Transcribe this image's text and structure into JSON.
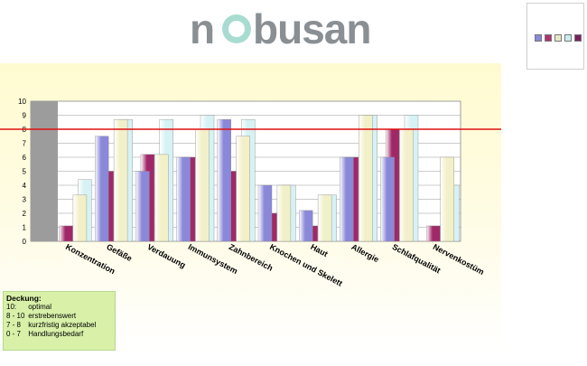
{
  "logo": {
    "text": "nobusan"
  },
  "legend_colors": [
    "#8a88d8",
    "#b03070",
    "#e8e8c8",
    "#c8eef0",
    "#7a2060"
  ],
  "deckung": {
    "title": "Deckung:",
    "rows": [
      {
        "range": "10:",
        "label": "optimal"
      },
      {
        "range": "8 - 10",
        "label": "erstrebenswert"
      },
      {
        "range": "7 - 8",
        "label": "kurzfristig akzeptabel"
      },
      {
        "range": "0 - 7",
        "label": "Handlungsbedarf"
      }
    ]
  },
  "chart_data": {
    "type": "bar",
    "title": "",
    "xlabel": "",
    "ylabel": "",
    "ylim": [
      0,
      10
    ],
    "yticks": [
      "0",
      "1",
      "2",
      "3",
      "4",
      "5",
      "6",
      "7",
      "8",
      "9",
      "10"
    ],
    "categories": [
      "Konzentration",
      "Gefäße",
      "Verdauung",
      "Immunsystem",
      "Zahnbereich",
      "Knochen und Skelett",
      "Haut",
      "Allergie",
      "Schlafqualität",
      "Nervenkostüm"
    ],
    "series": [
      {
        "color": "#8a88d8",
        "values": [
          0,
          7.5,
          5,
          6,
          8.7,
          4,
          2.2,
          6,
          6,
          0
        ]
      },
      {
        "color": "#a02868",
        "values": [
          1.1,
          5,
          6.2,
          6,
          5,
          2,
          1.1,
          6,
          8,
          1.1
        ]
      },
      {
        "color": "#f2f0c8",
        "values": [
          3.3,
          8.7,
          6.2,
          8,
          7.5,
          4,
          3.3,
          9,
          8,
          6
        ]
      },
      {
        "color": "#d6f2f4",
        "values": [
          4.4,
          8.7,
          8.7,
          9,
          8.7,
          4,
          3.3,
          9,
          9,
          4
        ]
      }
    ],
    "reference_line": 8,
    "reference_color": "#e01010"
  }
}
